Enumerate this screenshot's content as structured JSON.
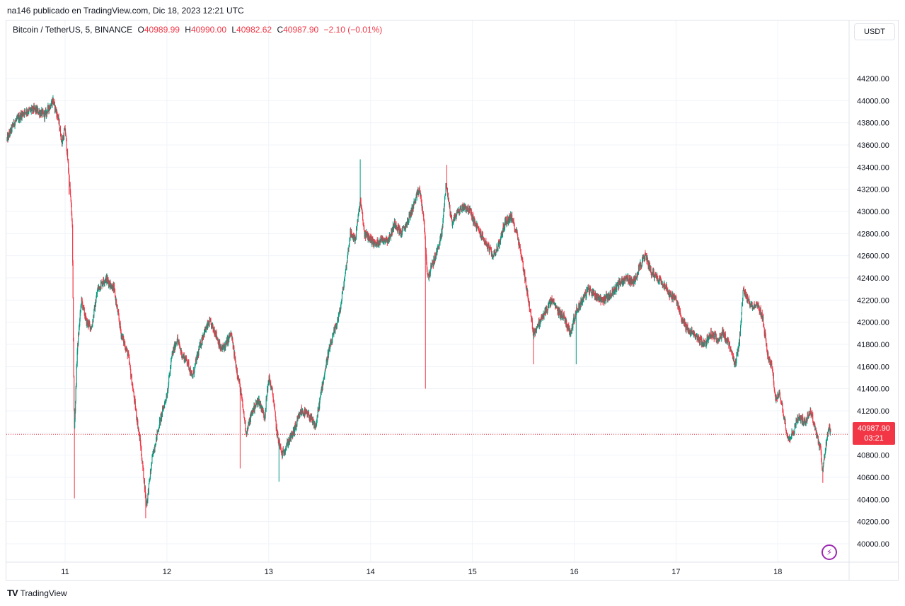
{
  "header": {
    "published": "na146 publicado en TradingView.com, Dic 18, 2023 12:21 UTC"
  },
  "legend": {
    "symbol": "Bitcoin / TetherUS, 5, BINANCE",
    "o_label": "O",
    "o_value": "40989.99",
    "h_label": "H",
    "h_value": "40990.00",
    "l_label": "L",
    "l_value": "40982.62",
    "c_label": "C",
    "c_value": "40987.90",
    "change": "−2.10 (−0.01%)"
  },
  "currency": "USDT",
  "last_price": {
    "value": "40987.90",
    "countdown": "03:21"
  },
  "brand": {
    "name": "TradingView",
    "logo": "TV"
  },
  "colors": {
    "up": "#089981",
    "down": "#f23645",
    "grid": "#f0f3fa",
    "axis_text": "#131722",
    "bolt": "#9c27b0"
  },
  "icons": {
    "replay": "lightning-bolt-icon",
    "brand": "tradingview-logo-icon"
  },
  "chart_data": {
    "type": "candlestick",
    "interval": "5",
    "yticks": [
      "40000.00",
      "40200.00",
      "40400.00",
      "40600.00",
      "40800.00",
      "41000.00",
      "41200.00",
      "41400.00",
      "41600.00",
      "41800.00",
      "42000.00",
      "42200.00",
      "42400.00",
      "42600.00",
      "42800.00",
      "43000.00",
      "43200.00",
      "43400.00",
      "43600.00",
      "43800.00",
      "44000.00",
      "44200.00"
    ],
    "ylim": [
      39900,
      44300
    ],
    "xticks": [
      {
        "label": "11",
        "day": 11
      },
      {
        "label": "12",
        "day": 12
      },
      {
        "label": "13",
        "day": 13
      },
      {
        "label": "14",
        "day": 14
      },
      {
        "label": "15",
        "day": 15
      },
      {
        "label": "16",
        "day": 16
      },
      {
        "label": "17",
        "day": 17
      },
      {
        "label": "18",
        "day": 18
      }
    ],
    "xlim": [
      10.43,
      18.55
    ],
    "last_price": 40987.9,
    "path": [
      [
        10.43,
        43650
      ],
      [
        10.5,
        43800
      ],
      [
        10.6,
        43900
      ],
      [
        10.7,
        43920
      ],
      [
        10.8,
        43870
      ],
      [
        10.88,
        44000
      ],
      [
        10.93,
        43850
      ],
      [
        10.97,
        43620
      ],
      [
        11.0,
        43750
      ],
      [
        11.04,
        43300
      ],
      [
        11.07,
        42900
      ],
      [
        11.09,
        41000
      ],
      [
        11.12,
        41750
      ],
      [
        11.16,
        42200
      ],
      [
        11.21,
        42000
      ],
      [
        11.26,
        41950
      ],
      [
        11.32,
        42300
      ],
      [
        11.4,
        42400
      ],
      [
        11.48,
        42300
      ],
      [
        11.55,
        41900
      ],
      [
        11.62,
        41700
      ],
      [
        11.68,
        41300
      ],
      [
        11.74,
        40900
      ],
      [
        11.8,
        40350
      ],
      [
        11.86,
        40800
      ],
      [
        11.93,
        41100
      ],
      [
        12.0,
        41350
      ],
      [
        12.05,
        41700
      ],
      [
        12.1,
        41850
      ],
      [
        12.15,
        41700
      ],
      [
        12.2,
        41650
      ],
      [
        12.25,
        41500
      ],
      [
        12.3,
        41700
      ],
      [
        12.36,
        41900
      ],
      [
        12.42,
        42000
      ],
      [
        12.48,
        41900
      ],
      [
        12.53,
        41750
      ],
      [
        12.58,
        41800
      ],
      [
        12.63,
        41900
      ],
      [
        12.68,
        41600
      ],
      [
        12.72,
        41400
      ],
      [
        12.78,
        41000
      ],
      [
        12.84,
        41200
      ],
      [
        12.9,
        41300
      ],
      [
        12.96,
        41150
      ],
      [
        13.0,
        41500
      ],
      [
        13.04,
        41350
      ],
      [
        13.08,
        41000
      ],
      [
        13.13,
        40800
      ],
      [
        13.18,
        40900
      ],
      [
        13.24,
        41000
      ],
      [
        13.32,
        41200
      ],
      [
        13.4,
        41150
      ],
      [
        13.46,
        41050
      ],
      [
        13.52,
        41400
      ],
      [
        13.58,
        41700
      ],
      [
        13.64,
        41900
      ],
      [
        13.7,
        42100
      ],
      [
        13.76,
        42500
      ],
      [
        13.8,
        42800
      ],
      [
        13.85,
        42750
      ],
      [
        13.9,
        43100
      ],
      [
        13.94,
        42800
      ],
      [
        14.0,
        42750
      ],
      [
        14.05,
        42700
      ],
      [
        14.1,
        42750
      ],
      [
        14.18,
        42750
      ],
      [
        14.24,
        42900
      ],
      [
        14.3,
        42800
      ],
      [
        14.36,
        42900
      ],
      [
        14.42,
        43050
      ],
      [
        14.48,
        43200
      ],
      [
        14.52,
        42950
      ],
      [
        14.56,
        42400
      ],
      [
        14.6,
        42500
      ],
      [
        14.64,
        42600
      ],
      [
        14.7,
        42800
      ],
      [
        14.74,
        43250
      ],
      [
        14.8,
        42900
      ],
      [
        14.86,
        43000
      ],
      [
        14.92,
        43050
      ],
      [
        14.98,
        43000
      ],
      [
        15.02,
        42900
      ],
      [
        15.08,
        42800
      ],
      [
        15.14,
        42700
      ],
      [
        15.2,
        42600
      ],
      [
        15.26,
        42700
      ],
      [
        15.32,
        42900
      ],
      [
        15.38,
        42950
      ],
      [
        15.44,
        42800
      ],
      [
        15.5,
        42500
      ],
      [
        15.55,
        42200
      ],
      [
        15.6,
        41900
      ],
      [
        15.66,
        42000
      ],
      [
        15.72,
        42100
      ],
      [
        15.78,
        42200
      ],
      [
        15.84,
        42100
      ],
      [
        15.9,
        42050
      ],
      [
        15.96,
        41900
      ],
      [
        16.02,
        42100
      ],
      [
        16.08,
        42200
      ],
      [
        16.14,
        42300
      ],
      [
        16.2,
        42250
      ],
      [
        16.28,
        42200
      ],
      [
        16.36,
        42250
      ],
      [
        16.44,
        42350
      ],
      [
        16.52,
        42400
      ],
      [
        16.58,
        42350
      ],
      [
        16.64,
        42500
      ],
      [
        16.7,
        42600
      ],
      [
        16.76,
        42450
      ],
      [
        16.82,
        42400
      ],
      [
        16.88,
        42350
      ],
      [
        16.94,
        42250
      ],
      [
        17.0,
        42200
      ],
      [
        17.05,
        42050
      ],
      [
        17.1,
        41950
      ],
      [
        17.16,
        41900
      ],
      [
        17.22,
        41850
      ],
      [
        17.28,
        41800
      ],
      [
        17.34,
        41900
      ],
      [
        17.4,
        41850
      ],
      [
        17.46,
        41900
      ],
      [
        17.52,
        41800
      ],
      [
        17.58,
        41600
      ],
      [
        17.62,
        41800
      ],
      [
        17.66,
        42300
      ],
      [
        17.7,
        42200
      ],
      [
        17.75,
        42150
      ],
      [
        17.8,
        42150
      ],
      [
        17.85,
        42050
      ],
      [
        17.9,
        41700
      ],
      [
        17.94,
        41600
      ],
      [
        17.98,
        41300
      ],
      [
        18.02,
        41350
      ],
      [
        18.06,
        41150
      ],
      [
        18.1,
        40950
      ],
      [
        18.15,
        41000
      ],
      [
        18.2,
        41150
      ],
      [
        18.26,
        41100
      ],
      [
        18.32,
        41200
      ],
      [
        18.38,
        41000
      ],
      [
        18.42,
        40850
      ],
      [
        18.44,
        40650
      ],
      [
        18.48,
        40950
      ],
      [
        18.5,
        41050
      ],
      [
        18.52,
        40990
      ]
    ],
    "spikes": [
      [
        11.09,
        40410
      ],
      [
        11.79,
        40230
      ],
      [
        14.54,
        41400
      ],
      [
        13.1,
        40560
      ],
      [
        12.72,
        40680
      ],
      [
        13.9,
        43470
      ],
      [
        14.75,
        43420
      ],
      [
        18.44,
        40550
      ],
      [
        10.88,
        44050
      ],
      [
        11.04,
        43150
      ],
      [
        15.6,
        41620
      ],
      [
        16.02,
        41620
      ]
    ]
  }
}
